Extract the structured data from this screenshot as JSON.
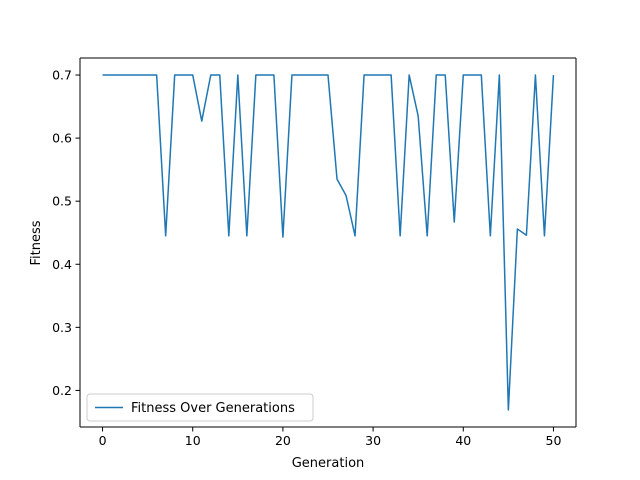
{
  "chart_data": {
    "type": "line",
    "title": "",
    "xlabel": "Generation",
    "ylabel": "Fitness",
    "xlim": [
      -2.5,
      52.5
    ],
    "ylim": [
      0.142,
      0.727
    ],
    "xticks": [
      0,
      10,
      20,
      30,
      40,
      50
    ],
    "xtick_labels": [
      "0",
      "10",
      "20",
      "30",
      "40",
      "50"
    ],
    "yticks": [
      0.2,
      0.3,
      0.4,
      0.5,
      0.6,
      0.7
    ],
    "ytick_labels": [
      "0.2",
      "0.3",
      "0.4",
      "0.5",
      "0.6",
      "0.7"
    ],
    "grid": false,
    "legend_position": "lower-left",
    "series": [
      {
        "name": "Fitness Over Generations",
        "color": "#1f77b4",
        "x": [
          0,
          1,
          2,
          3,
          4,
          5,
          6,
          7,
          8,
          9,
          10,
          11,
          12,
          13,
          14,
          15,
          16,
          17,
          18,
          19,
          20,
          21,
          22,
          23,
          24,
          25,
          26,
          27,
          28,
          29,
          30,
          31,
          32,
          33,
          34,
          35,
          36,
          37,
          38,
          39,
          40,
          41,
          42,
          43,
          44,
          45,
          46,
          47,
          48,
          49,
          50
        ],
        "y": [
          0.7,
          0.7,
          0.7,
          0.7,
          0.7,
          0.7,
          0.7,
          0.445,
          0.7,
          0.7,
          0.7,
          0.627,
          0.7,
          0.7,
          0.445,
          0.7,
          0.445,
          0.7,
          0.7,
          0.7,
          0.443,
          0.7,
          0.7,
          0.7,
          0.7,
          0.7,
          0.535,
          0.509,
          0.445,
          0.7,
          0.7,
          0.7,
          0.7,
          0.445,
          0.7,
          0.635,
          0.445,
          0.7,
          0.7,
          0.467,
          0.7,
          0.7,
          0.7,
          0.445,
          0.7,
          0.169,
          0.456,
          0.446,
          0.7,
          0.445,
          0.7
        ]
      }
    ]
  }
}
